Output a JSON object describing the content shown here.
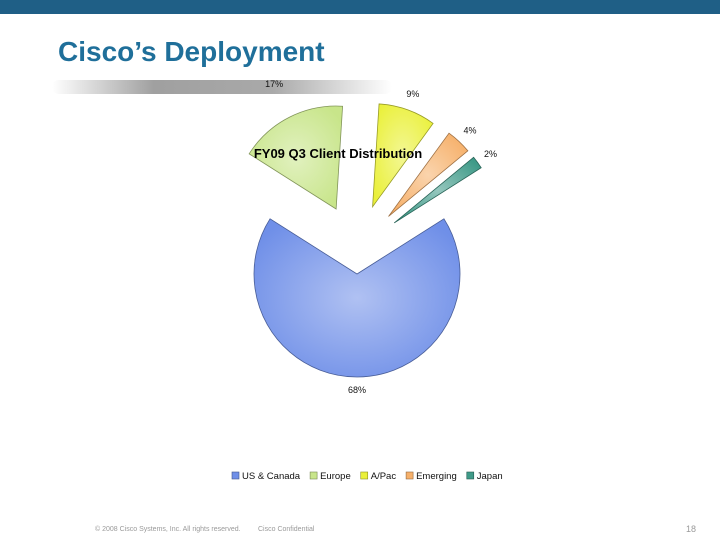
{
  "slide": {
    "title": "Cisco’s Deployment",
    "footer_copyright": "© 2008 Cisco Systems, Inc. All rights reserved.",
    "footer_confidential": "Cisco Confidential",
    "page_number": "18",
    "brand_color": "#1f5f86"
  },
  "chart_data": {
    "type": "pie",
    "title": "FY09 Q3 Client Distribution",
    "exploded": true,
    "legend_position": "bottom",
    "slices": [
      {
        "name": "US & Canada",
        "value": 68,
        "label": "68%",
        "color": "#6f8fe8"
      },
      {
        "name": "Europe",
        "value": 17,
        "label": "17%",
        "color": "#c8e58a"
      },
      {
        "name": "A/Pac",
        "value": 9,
        "label": "9%",
        "color": "#eaf03a"
      },
      {
        "name": "Emerging",
        "value": 4,
        "label": "4%",
        "color": "#f6b06a"
      },
      {
        "name": "Japan",
        "value": 2,
        "label": "2%",
        "color": "#3f9a88"
      }
    ]
  }
}
